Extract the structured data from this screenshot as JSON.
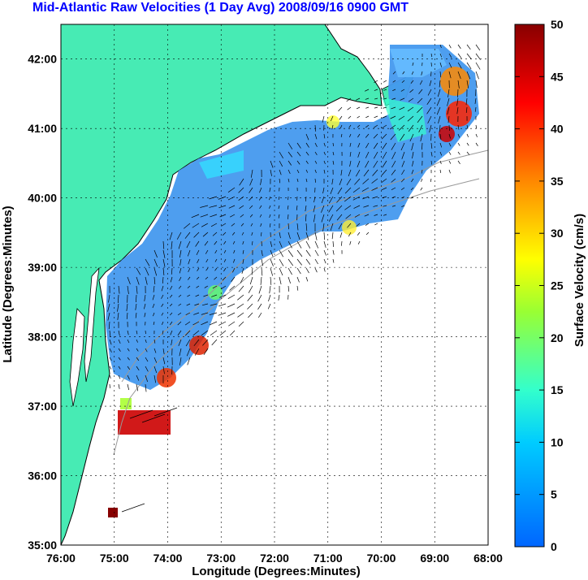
{
  "title": "Mid-Atlantic Raw Velocities (1 Day Avg) 2008/09/16 0900 GMT",
  "map": {
    "x_label": "Longitude (Degrees:Minutes)",
    "y_label": "Latitude (Degrees:Minutes)",
    "x_ticks": [
      "76:00",
      "75:00",
      "74:00",
      "73:00",
      "72:00",
      "71:00",
      "70:00",
      "69:00",
      "68:00"
    ],
    "y_ticks": [
      "42:00",
      "41:00",
      "40:00",
      "39:00",
      "38:00",
      "37:00",
      "36:00",
      "35:00"
    ],
    "lon_range": [
      -76,
      -68
    ],
    "lat_range": [
      35,
      42.5
    ]
  },
  "colorbar": {
    "label": "Surface Velocity (cm/s)",
    "ticks": [
      "50",
      "45",
      "40",
      "35",
      "30",
      "25",
      "20",
      "15",
      "10",
      "5",
      "0"
    ],
    "range": [
      0,
      50
    ]
  },
  "colors": {
    "land": "#47ebb4",
    "title": "#0000ff",
    "speed_low": "#3399ff",
    "speed_mid": "#33ffcc",
    "speed_high": "#990000"
  }
}
